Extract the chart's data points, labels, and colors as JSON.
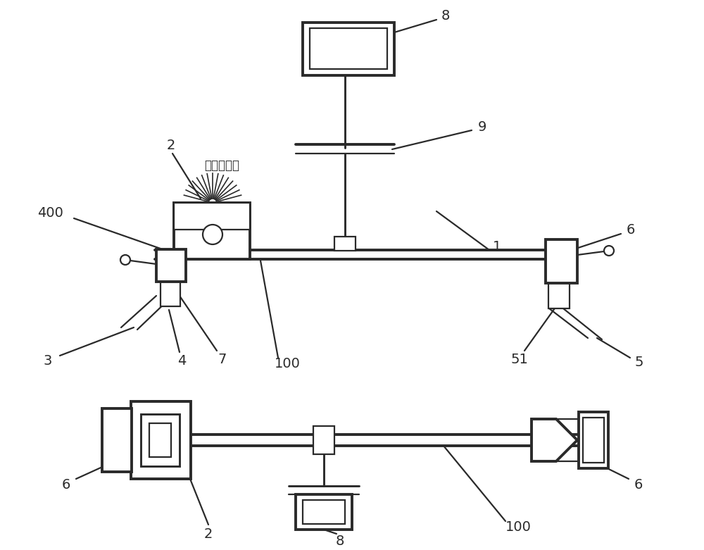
{
  "bg_color": "#ffffff",
  "line_color": "#2a2a2a",
  "lw": 1.6,
  "tlw": 2.8,
  "fs": 14
}
